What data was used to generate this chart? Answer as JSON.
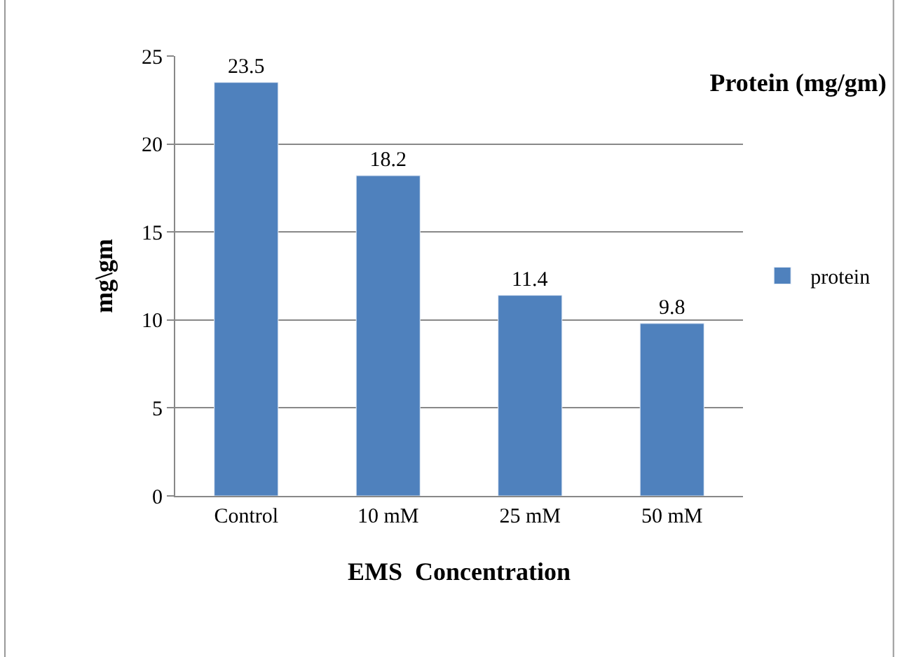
{
  "chart_data": {
    "type": "bar",
    "title": "Protein (mg/gm)",
    "xlabel": "EMS  Concentration",
    "ylabel": "mg\\gm",
    "categories": [
      "Control",
      "10 mM",
      "25 mM",
      "50 mM"
    ],
    "series": [
      {
        "name": "protein",
        "color": "#4f81bd",
        "values": [
          23.5,
          18.2,
          11.4,
          9.8
        ]
      }
    ],
    "ylim": [
      0,
      25
    ],
    "yticks": [
      0,
      5,
      10,
      15,
      20,
      25
    ],
    "grid": "y",
    "legend": "right",
    "data_labels": true
  }
}
